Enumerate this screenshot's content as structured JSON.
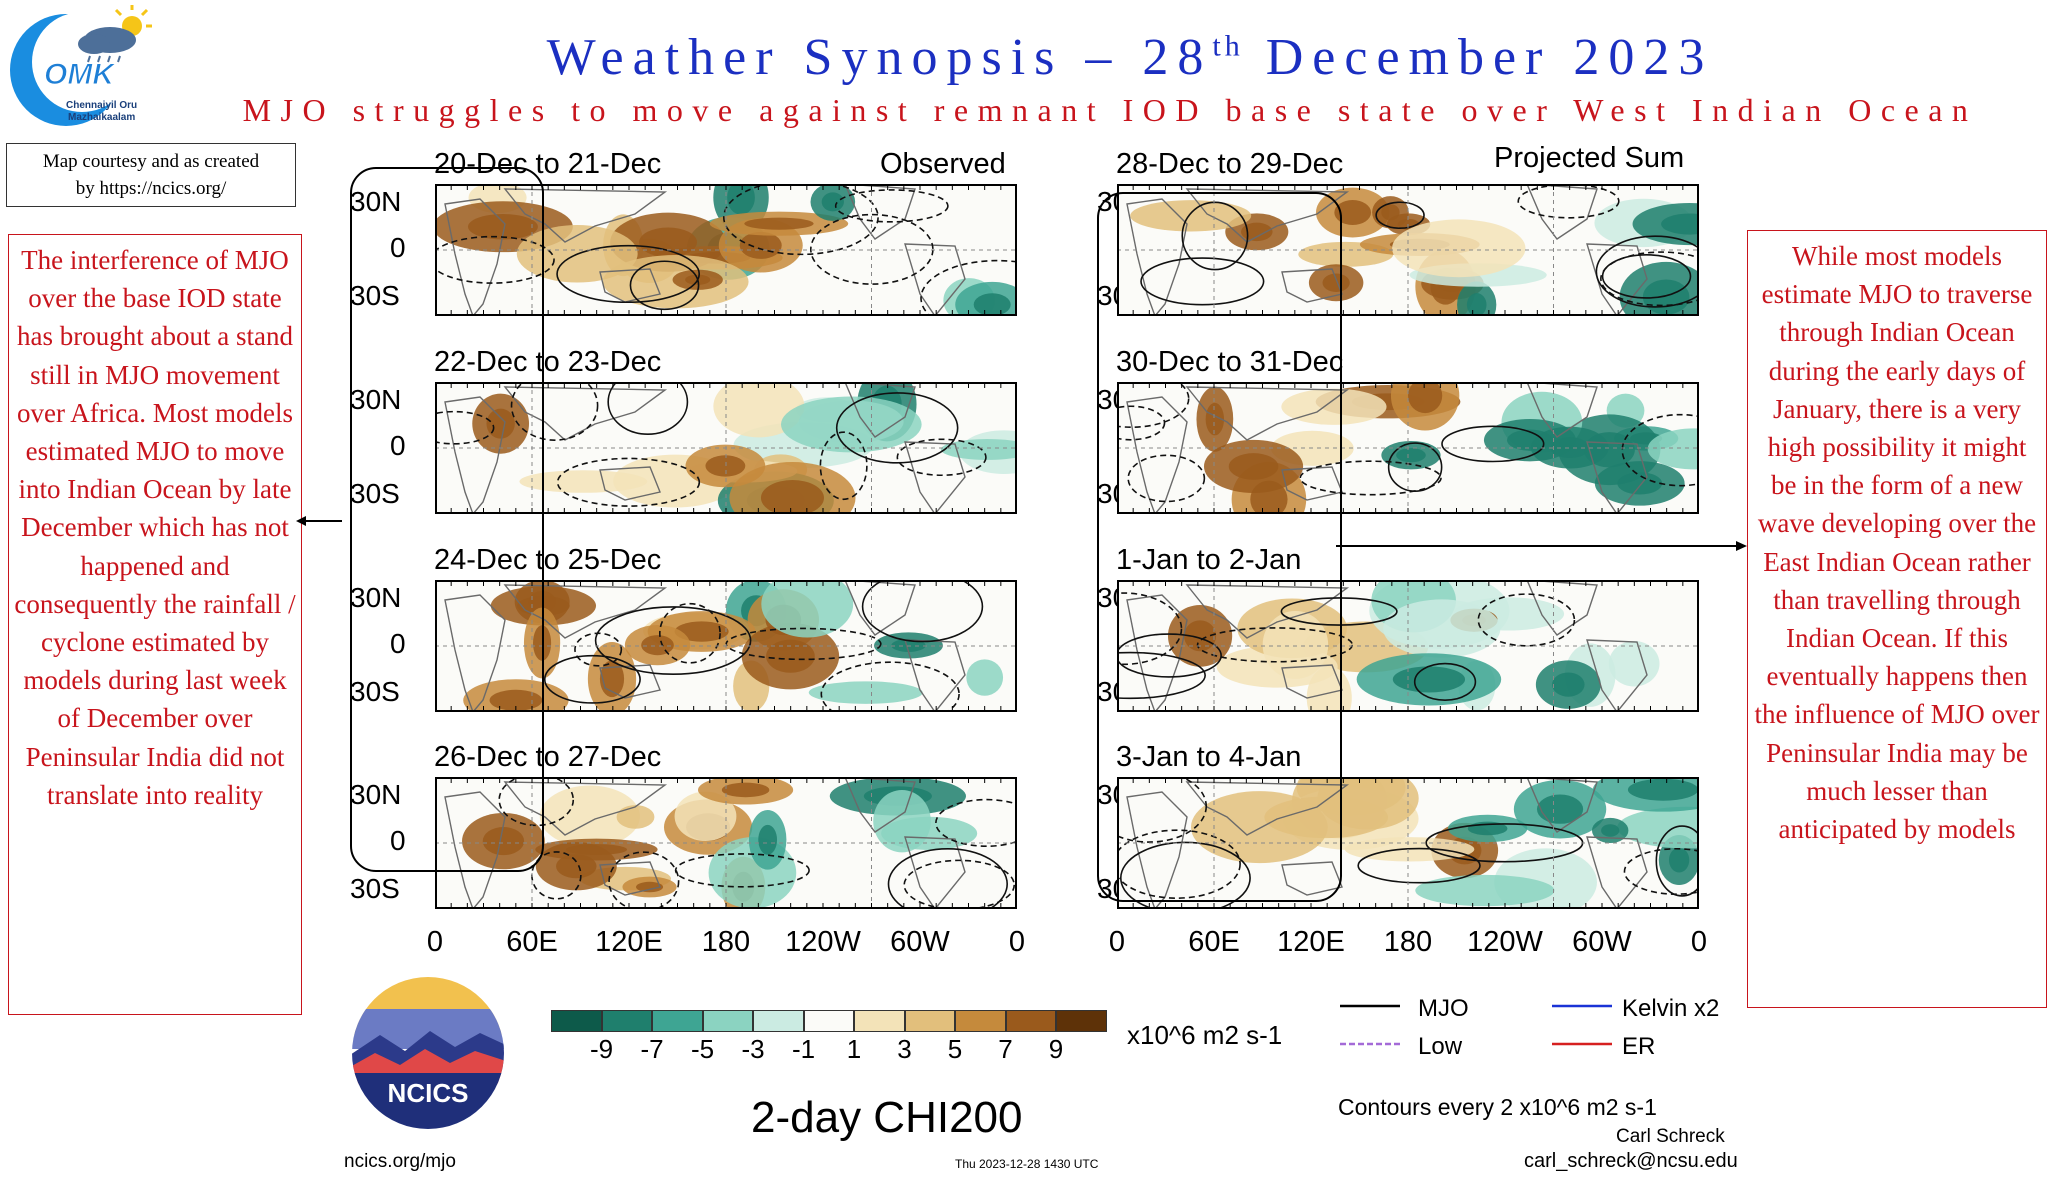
{
  "header": {
    "title_main": "Weather Synopsis – 28",
    "title_sup": "th",
    "title_end": " December 2023",
    "subtitle": "MJO struggles to move against remnant IOD base state over West Indian Ocean"
  },
  "logo": {
    "line1": "Chennaiyil Oru",
    "line2": "Mazhaikaalam",
    "text": "OMK"
  },
  "credit": {
    "line1": "Map courtesy and as created",
    "line2": "by https://ncics.org/"
  },
  "left_note": "The interference of MJO over the base IOD state has brought about a stand still in MJO movement over Africa. Most models estimated MJO to move into Indian Ocean by late December which has not happened and consequently the rainfall / cyclone estimated by models during last week of December over Peninsular India did not translate into reality",
  "right_note": "While most models estimate MJO to traverse through Indian Ocean during the early days of January, there is a very high possibility it might be in the form of a new wave developing over the East Indian Ocean rather than travelling through Indian Ocean. If this eventually happens then the influence of MJO over Peninsular India may  be much lesser than anticipated by models",
  "chart_data": {
    "type": "heatmap",
    "variable": "2-day CHI200",
    "units": "x10^6 m2 s-1",
    "lat_labels": [
      "30N",
      "0",
      "30S"
    ],
    "lon_labels": [
      "0",
      "60E",
      "120E",
      "180",
      "120W",
      "60W",
      "0"
    ],
    "columns": [
      {
        "header": "Observed",
        "panels": [
          "20-Dec to 21-Dec",
          "22-Dec to 23-Dec",
          "24-Dec to 25-Dec",
          "26-Dec to 27-Dec"
        ]
      },
      {
        "header": "Projected Sum",
        "panels": [
          "28-Dec to 29-Dec",
          "30-Dec to 31-Dec",
          "1-Jan to 2-Jan",
          "3-Jan to 4-Jan"
        ]
      }
    ],
    "colorbar": {
      "ticks": [
        "-9",
        "-7",
        "-5",
        "-3",
        "-1",
        "1",
        "3",
        "5",
        "7",
        "9"
      ],
      "colors": [
        "#0d5a4a",
        "#1f7f6d",
        "#3ea593",
        "#8bd3c1",
        "#cbebe2",
        "#fbfbf8",
        "#f3e3b8",
        "#e2bf7c",
        "#c58a3c",
        "#9a5a1c",
        "#5e3208"
      ]
    },
    "legend": [
      {
        "label": "MJO",
        "color": "#000000"
      },
      {
        "label": "Low",
        "color": "#a46ad7"
      },
      {
        "label": "Kelvin x2",
        "color": "#1a33d6"
      },
      {
        "label": "ER",
        "color": "#d62020"
      }
    ],
    "contour_note": "Contours every 2 x10^6 m2 s-1"
  },
  "footer": {
    "org": "NCICS",
    "url": "ncics.org/mjo",
    "timestamp": "Thu 2023-12-28 1430 UTC",
    "author": "Carl Schreck",
    "email": "carl_schreck@ncsu.edu"
  }
}
